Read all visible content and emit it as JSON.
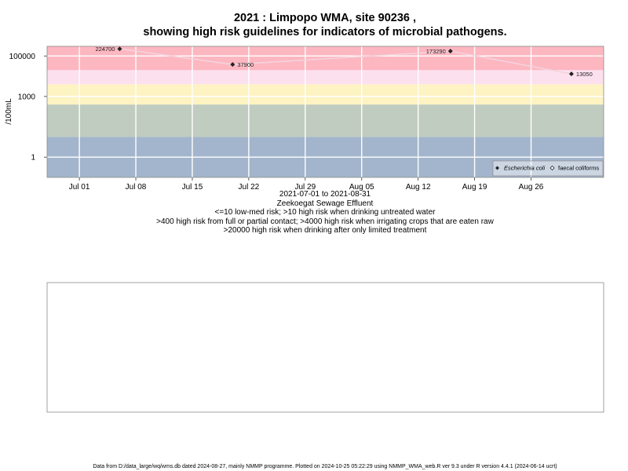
{
  "chart_data": {
    "type": "scatter",
    "title": "2021 : Limpopo WMA, site 90236 ,",
    "subtitle": "showing high risk guidelines for indicators of microbial pathogens.",
    "ylabel": "/100mL",
    "xlabel": "",
    "y_scale": "log10",
    "ylim": [
      0.1,
      300000
    ],
    "xlim": [
      "2021-06-27",
      "2021-09-04"
    ],
    "x_ticks": [
      {
        "date": "2021-07-01",
        "label": "Jul 01"
      },
      {
        "date": "2021-07-08",
        "label": "Jul 08"
      },
      {
        "date": "2021-07-15",
        "label": "Jul 15"
      },
      {
        "date": "2021-07-22",
        "label": "Jul 22"
      },
      {
        "date": "2021-07-29",
        "label": "Jul 29"
      },
      {
        "date": "2021-08-05",
        "label": "Aug 05"
      },
      {
        "date": "2021-08-12",
        "label": "Aug 12"
      },
      {
        "date": "2021-08-19",
        "label": "Aug 19"
      },
      {
        "date": "2021-08-26",
        "label": "Aug 26"
      }
    ],
    "y_ticks": [
      {
        "value": 1,
        "label": "1"
      },
      {
        "value": 1000,
        "label": "1000"
      },
      {
        "value": 100000,
        "label": "100000"
      }
    ],
    "grid": true,
    "risk_bands": [
      {
        "from": 0.1,
        "to": 10,
        "color": "#a3b5cc"
      },
      {
        "from": 10,
        "to": 400,
        "color": "#c0ccbf"
      },
      {
        "from": 400,
        "to": 4000,
        "color": "#fdf3c3"
      },
      {
        "from": 4000,
        "to": 20000,
        "color": "#fce0ee"
      },
      {
        "from": 20000,
        "to": 300000,
        "color": "#fdb7c1"
      }
    ],
    "series": [
      {
        "name": "Escherichia coli",
        "marker": "diamond-filled",
        "color": "#222222",
        "line_color": "#f4d3dc",
        "points": [
          {
            "date": "2021-07-06",
            "value": 224700,
            "label": "224700"
          },
          {
            "date": "2021-07-20",
            "value": 37900,
            "label": "37900"
          },
          {
            "date": "2021-08-16",
            "value": 173290,
            "label": "173290"
          },
          {
            "date": "2021-08-31",
            "value": 13050,
            "label": "13050"
          }
        ]
      },
      {
        "name": "faecal coliforms",
        "marker": "diamond-open",
        "color": "#222222",
        "points": []
      }
    ],
    "legend_position": "bottom-right",
    "below_axis_lines": [
      "2021-07-01 to 2021-08-31",
      "Zeekoegat Sewage Effluent",
      "<=10 low-med risk; >10 high risk when drinking untreated water",
      ">400 high risk from full or partial contact; >4000 high risk when irrigating crops that are eaten raw",
      ">20000 high risk when drinking after only limited treatment"
    ]
  },
  "footer": "Data from D:/data_large/wq/wms.db dated 2024-08-27, mainly NMMP programme. Plotted on 2024-10-25 05:22:29 using NMMP_WMA_web.R ver 9.3 under R version 4.4.1 (2024-06-14 ucrt)"
}
